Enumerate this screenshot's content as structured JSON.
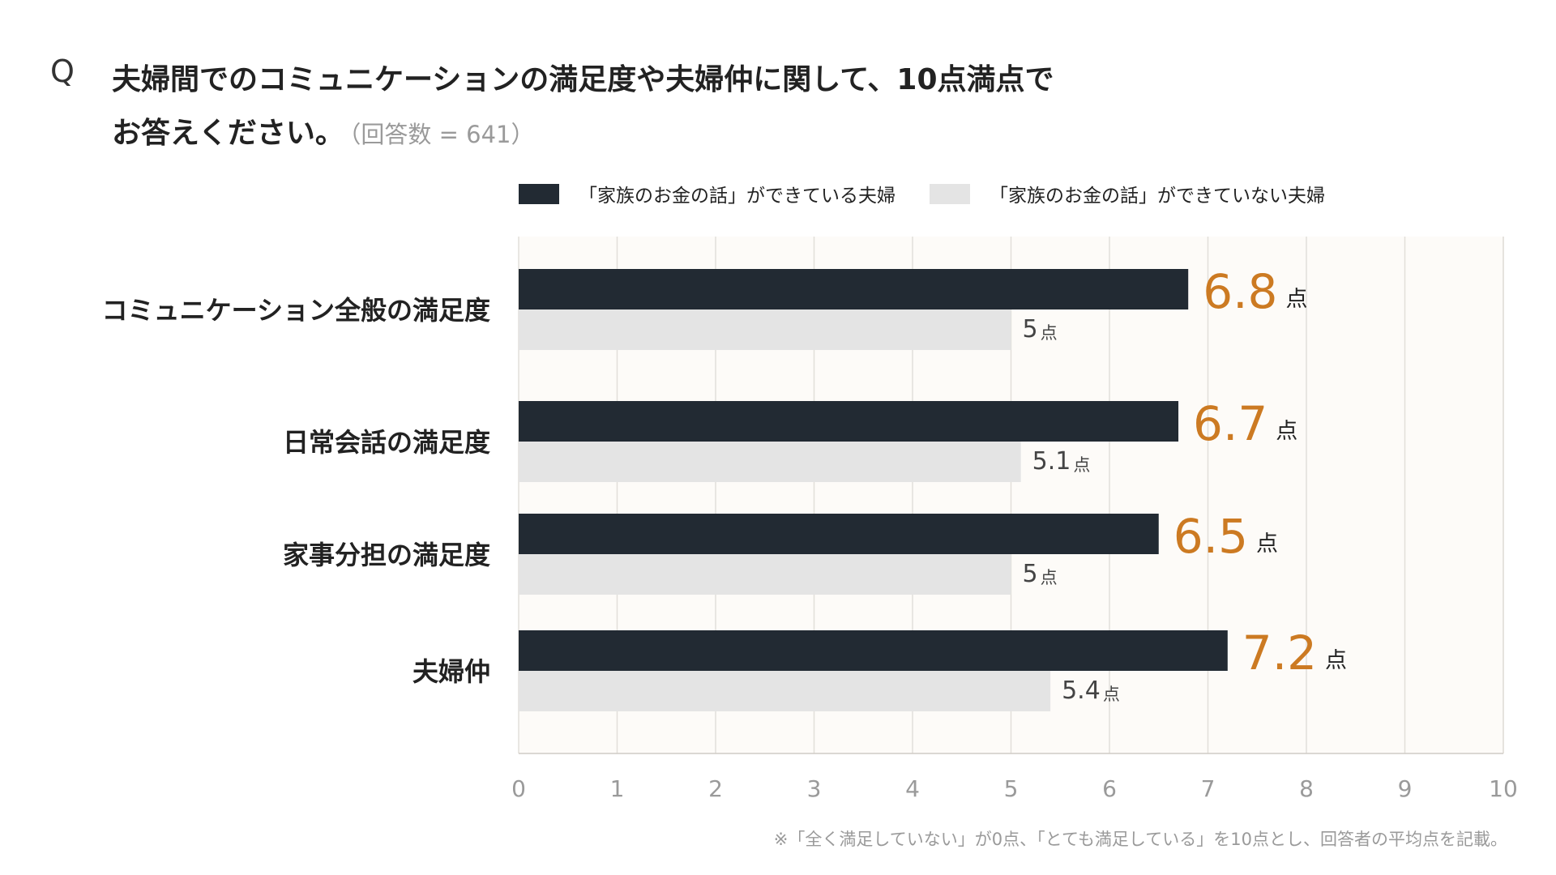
{
  "question": {
    "mark": "Q",
    "line1": "夫婦間でのコミュニケーションの満足度や夫婦仲に関して、10点満点で",
    "line2": "お答えください。",
    "respondents": "（回答数 = 641）"
  },
  "footnote": "※「全く満足していない」が0点、「とても満足している」を10点とし、回答者の平均点を記載。",
  "colors": {
    "series_dark": "#222a33",
    "series_light": "#e4e4e4",
    "value_highlight": "#cc7a22",
    "plot_bg": "#fdfbf8",
    "grid": "#e2dfda"
  },
  "chart_data": {
    "type": "bar",
    "orientation": "horizontal",
    "categories": [
      "コミュニケーション全般の満足度",
      "日常会話の満足度",
      "家事分担の満足度",
      "夫婦仲"
    ],
    "series": [
      {
        "name": "「家族のお金の話」ができている夫婦",
        "values": [
          6.8,
          6.7,
          6.5,
          7.2
        ]
      },
      {
        "name": "「家族のお金の話」ができていない夫婦",
        "values": [
          5,
          5.1,
          5,
          5.4
        ]
      }
    ],
    "value_unit": "点",
    "xlim": [
      0,
      10
    ],
    "xticks": [
      0,
      1,
      2,
      3,
      4,
      5,
      6,
      7,
      8,
      9,
      10
    ],
    "grid": true,
    "legend": "top"
  }
}
